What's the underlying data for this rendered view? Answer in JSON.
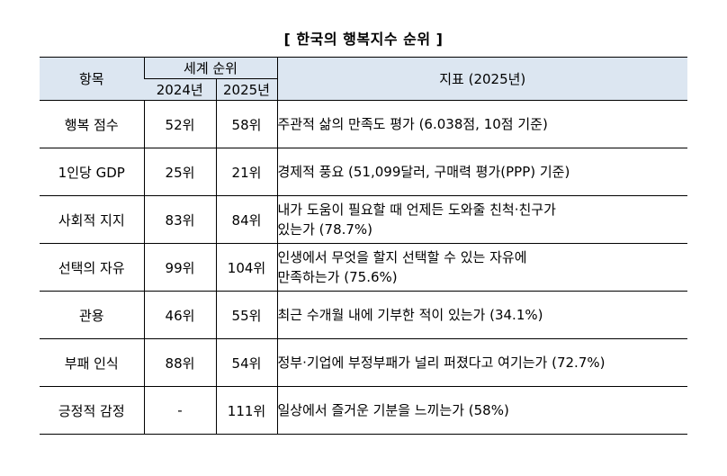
{
  "title": "[ 한국의 행복지수 순위 ]",
  "table": {
    "headers": {
      "item": "항목",
      "world_rank": "세계 순위",
      "year_2024": "2024년",
      "year_2025": "2025년",
      "indicator": "지표 (2025년)"
    },
    "rows": [
      {
        "item": "행복 점수",
        "rank_2024": "52위",
        "rank_2025": "58위",
        "indicator_lines": [
          "주관적 삶의 만족도 평가 (6.038점, 10점 기준)"
        ]
      },
      {
        "item": "1인당 GDP",
        "rank_2024": "25위",
        "rank_2025": "21위",
        "indicator_lines": [
          "경제적 풍요 (51,099달러, 구매력 평가(PPP) 기준)"
        ]
      },
      {
        "item": "사회적 지지",
        "rank_2024": "83위",
        "rank_2025": "84위",
        "indicator_lines": [
          "내가 도움이 필요할 때 언제든 도와줄 친척·친구가",
          "있는가 (78.7%)"
        ]
      },
      {
        "item": "선택의 자유",
        "rank_2024": "99위",
        "rank_2025": "104위",
        "indicator_lines": [
          "인생에서 무엇을 할지 선택할 수 있는 자유에",
          "만족하는가 (75.6%)"
        ]
      },
      {
        "item": "관용",
        "rank_2024": "46위",
        "rank_2025": "55위",
        "indicator_lines": [
          "최근 수개월 내에 기부한 적이 있는가 (34.1%)"
        ]
      },
      {
        "item": "부패 인식",
        "rank_2024": "88위",
        "rank_2025": "54위",
        "indicator_lines": [
          "정부·기업에 부정부패가 널리 퍼졌다고 여기는가 (72.7%)"
        ]
      },
      {
        "item": "긍정적 감정",
        "rank_2024": "-",
        "rank_2025": "111위",
        "indicator_lines": [
          "일상에서 즐거운 기분을 느끼는가 (58%)"
        ]
      }
    ]
  }
}
